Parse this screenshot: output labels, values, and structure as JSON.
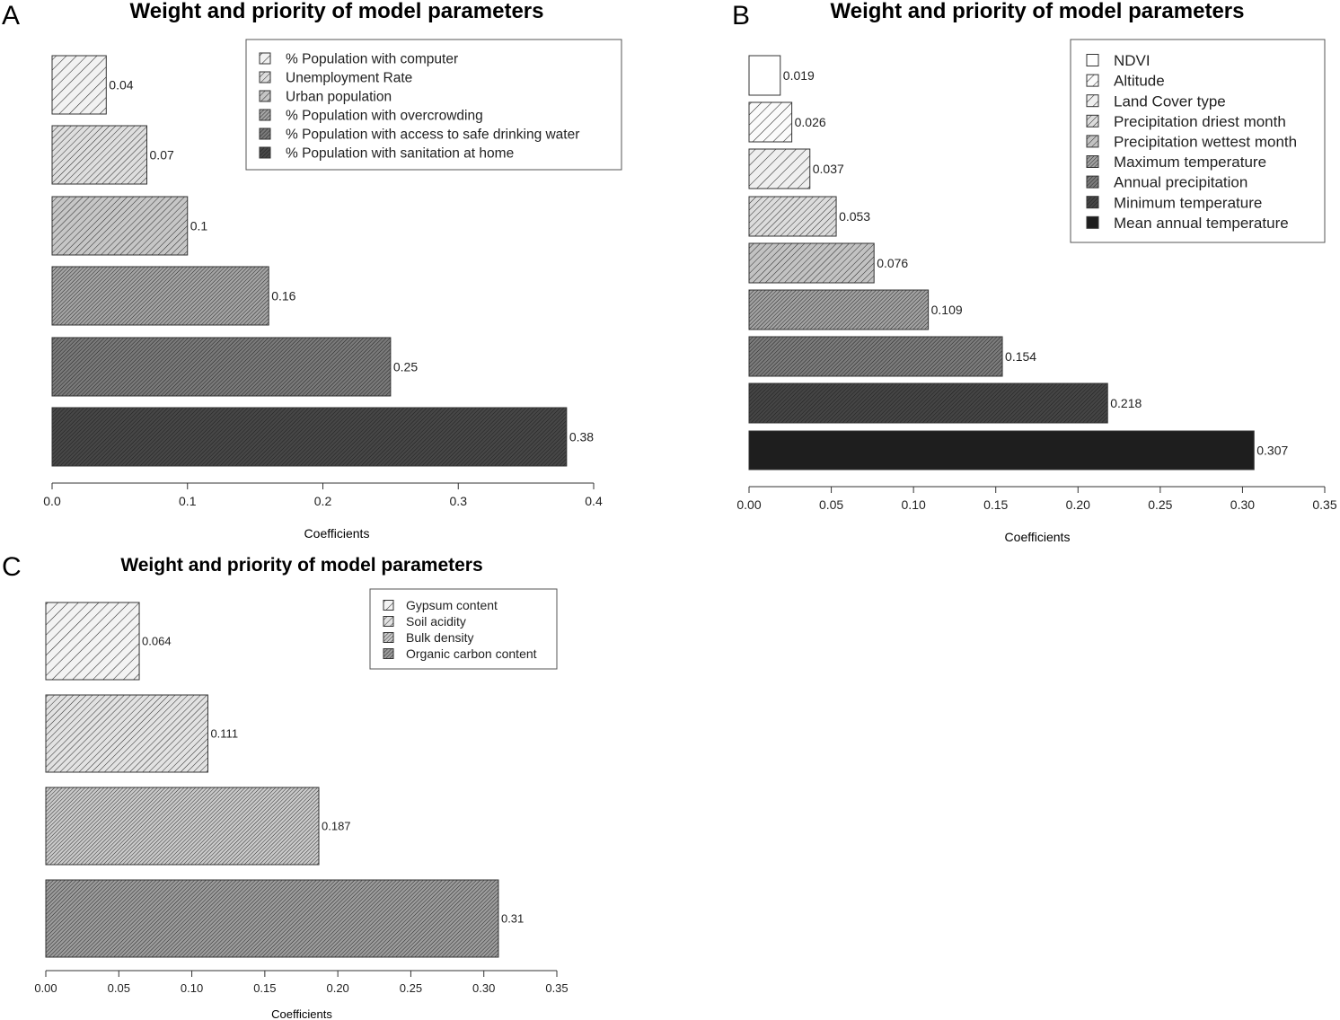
{
  "chart_data": [
    {
      "type": "bar",
      "orientation": "horizontal",
      "panel_label": "A",
      "title": "Weight and priority of model parameters",
      "xlabel": "Coefficients",
      "xlim": [
        0,
        0.4
      ],
      "xticks": [
        "0.0",
        "0.1",
        "0.2",
        "0.3",
        "0.4"
      ],
      "xtick_values": [
        0,
        0.1,
        0.2,
        0.3,
        0.4
      ],
      "legend_position": "top-right",
      "categories": [
        "% Population with computer",
        "Unemployment Rate",
        "Urban population",
        "% Population with overcrowding",
        "% Population with access to safe drinking water",
        "% Population with sanitation at home"
      ],
      "values": [
        0.04,
        0.07,
        0.1,
        0.16,
        0.25,
        0.38
      ],
      "value_labels": [
        "0.04",
        "0.07",
        "0.1",
        "0.16",
        "0.25",
        "0.38"
      ],
      "fills": [
        "#f2f2f2",
        "#dedede",
        "#c6c6c6",
        "#a4a4a4",
        "#7a7a7a",
        "#474747"
      ]
    },
    {
      "type": "bar",
      "orientation": "horizontal",
      "panel_label": "B",
      "title": "Weight and priority of model parameters",
      "xlabel": "Coefficients",
      "xlim": [
        0,
        0.35
      ],
      "xticks": [
        "0.00",
        "0.05",
        "0.10",
        "0.15",
        "0.20",
        "0.25",
        "0.30",
        "0.35"
      ],
      "xtick_values": [
        0,
        0.05,
        0.1,
        0.15,
        0.2,
        0.25,
        0.3,
        0.35
      ],
      "legend_position": "top-right",
      "categories": [
        "NDVI",
        "Altitude",
        "Land Cover type",
        "Precipitation driest month",
        "Precipitation wettest month",
        "Maximum temperature",
        "Annual precipitation",
        "Minimum temperature",
        "Mean annual temperature"
      ],
      "values": [
        0.019,
        0.026,
        0.037,
        0.053,
        0.076,
        0.109,
        0.154,
        0.218,
        0.307
      ],
      "value_labels": [
        "0.019",
        "0.026",
        "0.037",
        "0.053",
        "0.076",
        "0.109",
        "0.154",
        "0.218",
        "0.307"
      ],
      "fills": [
        "#ffffff",
        "#fbfbfb",
        "#efefef",
        "#dcdcdc",
        "#c2c2c2",
        "#a2a2a2",
        "#7c7c7c",
        "#454545",
        "#1e1e1e"
      ]
    },
    {
      "type": "bar",
      "orientation": "horizontal",
      "panel_label": "C",
      "title": "Weight and priority of model parameters",
      "xlabel": "Coefficients",
      "xlim": [
        0,
        0.35
      ],
      "xticks": [
        "0.00",
        "0.05",
        "0.10",
        "0.15",
        "0.20",
        "0.25",
        "0.30",
        "0.35"
      ],
      "xtick_values": [
        0,
        0.05,
        0.1,
        0.15,
        0.2,
        0.25,
        0.3,
        0.35
      ],
      "legend_position": "top-right",
      "categories": [
        "Gypsum content",
        "Soil acidity",
        "Bulk density",
        "Organic carbon content"
      ],
      "values": [
        0.064,
        0.111,
        0.187,
        0.31
      ],
      "value_labels": [
        "0.064",
        "0.111",
        "0.187",
        "0.31"
      ],
      "fills": [
        "#f3f3f3",
        "#e2e2e2",
        "#cacaca",
        "#9c9c9c"
      ]
    }
  ]
}
